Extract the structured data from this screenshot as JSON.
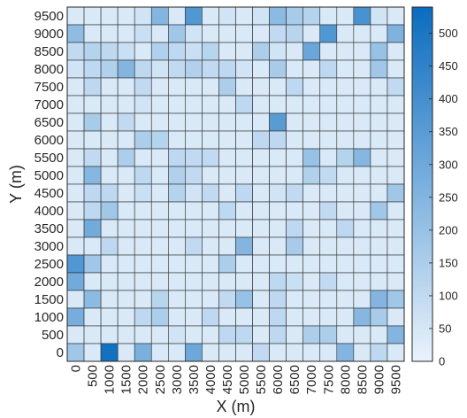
{
  "chart_data": {
    "type": "heatmap",
    "xlabel": "X (m)",
    "ylabel": "Y (m)",
    "x_categories": [
      "0",
      "500",
      "1000",
      "1500",
      "2000",
      "2500",
      "3000",
      "3500",
      "4000",
      "4500",
      "5000",
      "5500",
      "6000",
      "6500",
      "7000",
      "7500",
      "8000",
      "8500",
      "9000",
      "9500"
    ],
    "y_categories": [
      "9500",
      "9000",
      "8500",
      "8000",
      "7500",
      "7000",
      "6500",
      "6000",
      "5500",
      "5000",
      "4500",
      "4000",
      "3500",
      "3000",
      "2500",
      "2000",
      "1500",
      "1000",
      "500",
      "0"
    ],
    "values": [
      [
        40,
        40,
        40,
        40,
        60,
        250,
        40,
        370,
        40,
        60,
        40,
        60,
        230,
        160,
        130,
        40,
        40,
        390,
        60,
        40
      ],
      [
        220,
        40,
        40,
        40,
        80,
        40,
        180,
        60,
        40,
        40,
        40,
        40,
        100,
        120,
        40,
        370,
        40,
        40,
        40,
        260
      ],
      [
        100,
        130,
        110,
        80,
        40,
        140,
        110,
        80,
        120,
        40,
        40,
        150,
        60,
        40,
        310,
        40,
        40,
        40,
        200,
        40
      ],
      [
        60,
        110,
        140,
        250,
        110,
        60,
        100,
        140,
        100,
        110,
        60,
        40,
        160,
        40,
        40,
        110,
        40,
        40,
        180,
        40
      ],
      [
        40,
        110,
        40,
        40,
        100,
        40,
        40,
        40,
        40,
        150,
        40,
        40,
        40,
        110,
        40,
        40,
        40,
        40,
        40,
        100
      ],
      [
        40,
        40,
        40,
        40,
        60,
        40,
        40,
        40,
        40,
        40,
        110,
        40,
        40,
        40,
        40,
        40,
        40,
        40,
        40,
        40
      ],
      [
        40,
        160,
        40,
        100,
        40,
        40,
        40,
        40,
        40,
        40,
        40,
        40,
        350,
        40,
        40,
        40,
        40,
        40,
        40,
        40
      ],
      [
        40,
        40,
        40,
        40,
        150,
        130,
        40,
        40,
        40,
        40,
        40,
        110,
        110,
        40,
        40,
        40,
        40,
        40,
        40,
        40
      ],
      [
        40,
        100,
        40,
        150,
        40,
        40,
        110,
        100,
        100,
        40,
        40,
        40,
        40,
        40,
        200,
        40,
        130,
        240,
        40,
        40
      ],
      [
        40,
        240,
        40,
        40,
        110,
        40,
        140,
        100,
        40,
        40,
        40,
        40,
        40,
        40,
        140,
        100,
        40,
        40,
        40,
        40
      ],
      [
        40,
        110,
        110,
        40,
        80,
        40,
        130,
        60,
        100,
        40,
        110,
        40,
        60,
        100,
        40,
        40,
        40,
        40,
        40,
        180
      ],
      [
        40,
        110,
        180,
        40,
        40,
        40,
        40,
        40,
        40,
        110,
        40,
        40,
        40,
        40,
        40,
        100,
        40,
        40,
        180,
        40
      ],
      [
        40,
        290,
        40,
        40,
        40,
        40,
        40,
        40,
        40,
        40,
        40,
        40,
        40,
        110,
        40,
        40,
        110,
        40,
        40,
        40
      ],
      [
        40,
        40,
        110,
        40,
        40,
        40,
        40,
        100,
        40,
        40,
        250,
        40,
        40,
        160,
        40,
        40,
        40,
        40,
        40,
        40
      ],
      [
        370,
        180,
        40,
        40,
        40,
        40,
        40,
        40,
        40,
        150,
        40,
        40,
        40,
        40,
        40,
        40,
        40,
        40,
        40,
        40
      ],
      [
        290,
        40,
        40,
        40,
        40,
        40,
        40,
        40,
        40,
        40,
        40,
        40,
        110,
        80,
        40,
        100,
        40,
        40,
        40,
        40
      ],
      [
        40,
        230,
        40,
        40,
        40,
        120,
        40,
        40,
        40,
        100,
        200,
        40,
        110,
        40,
        40,
        40,
        40,
        40,
        250,
        180
      ],
      [
        280,
        40,
        40,
        40,
        110,
        150,
        40,
        40,
        110,
        40,
        40,
        40,
        110,
        40,
        40,
        40,
        40,
        240,
        160,
        40
      ],
      [
        40,
        40,
        40,
        40,
        40,
        40,
        60,
        40,
        40,
        110,
        110,
        40,
        110,
        40,
        150,
        150,
        40,
        40,
        40,
        250
      ],
      [
        180,
        40,
        520,
        40,
        270,
        40,
        40,
        300,
        40,
        40,
        40,
        100,
        40,
        40,
        40,
        40,
        250,
        40,
        110,
        40
      ]
    ],
    "colorbar": {
      "min": 0,
      "max": 540,
      "ticks": [
        "0",
        "50",
        "100",
        "150",
        "200",
        "250",
        "300",
        "350",
        "400",
        "450",
        "500"
      ],
      "color_low": "#eaf3fc",
      "color_high": "#0b6cbf"
    },
    "grid": true
  }
}
